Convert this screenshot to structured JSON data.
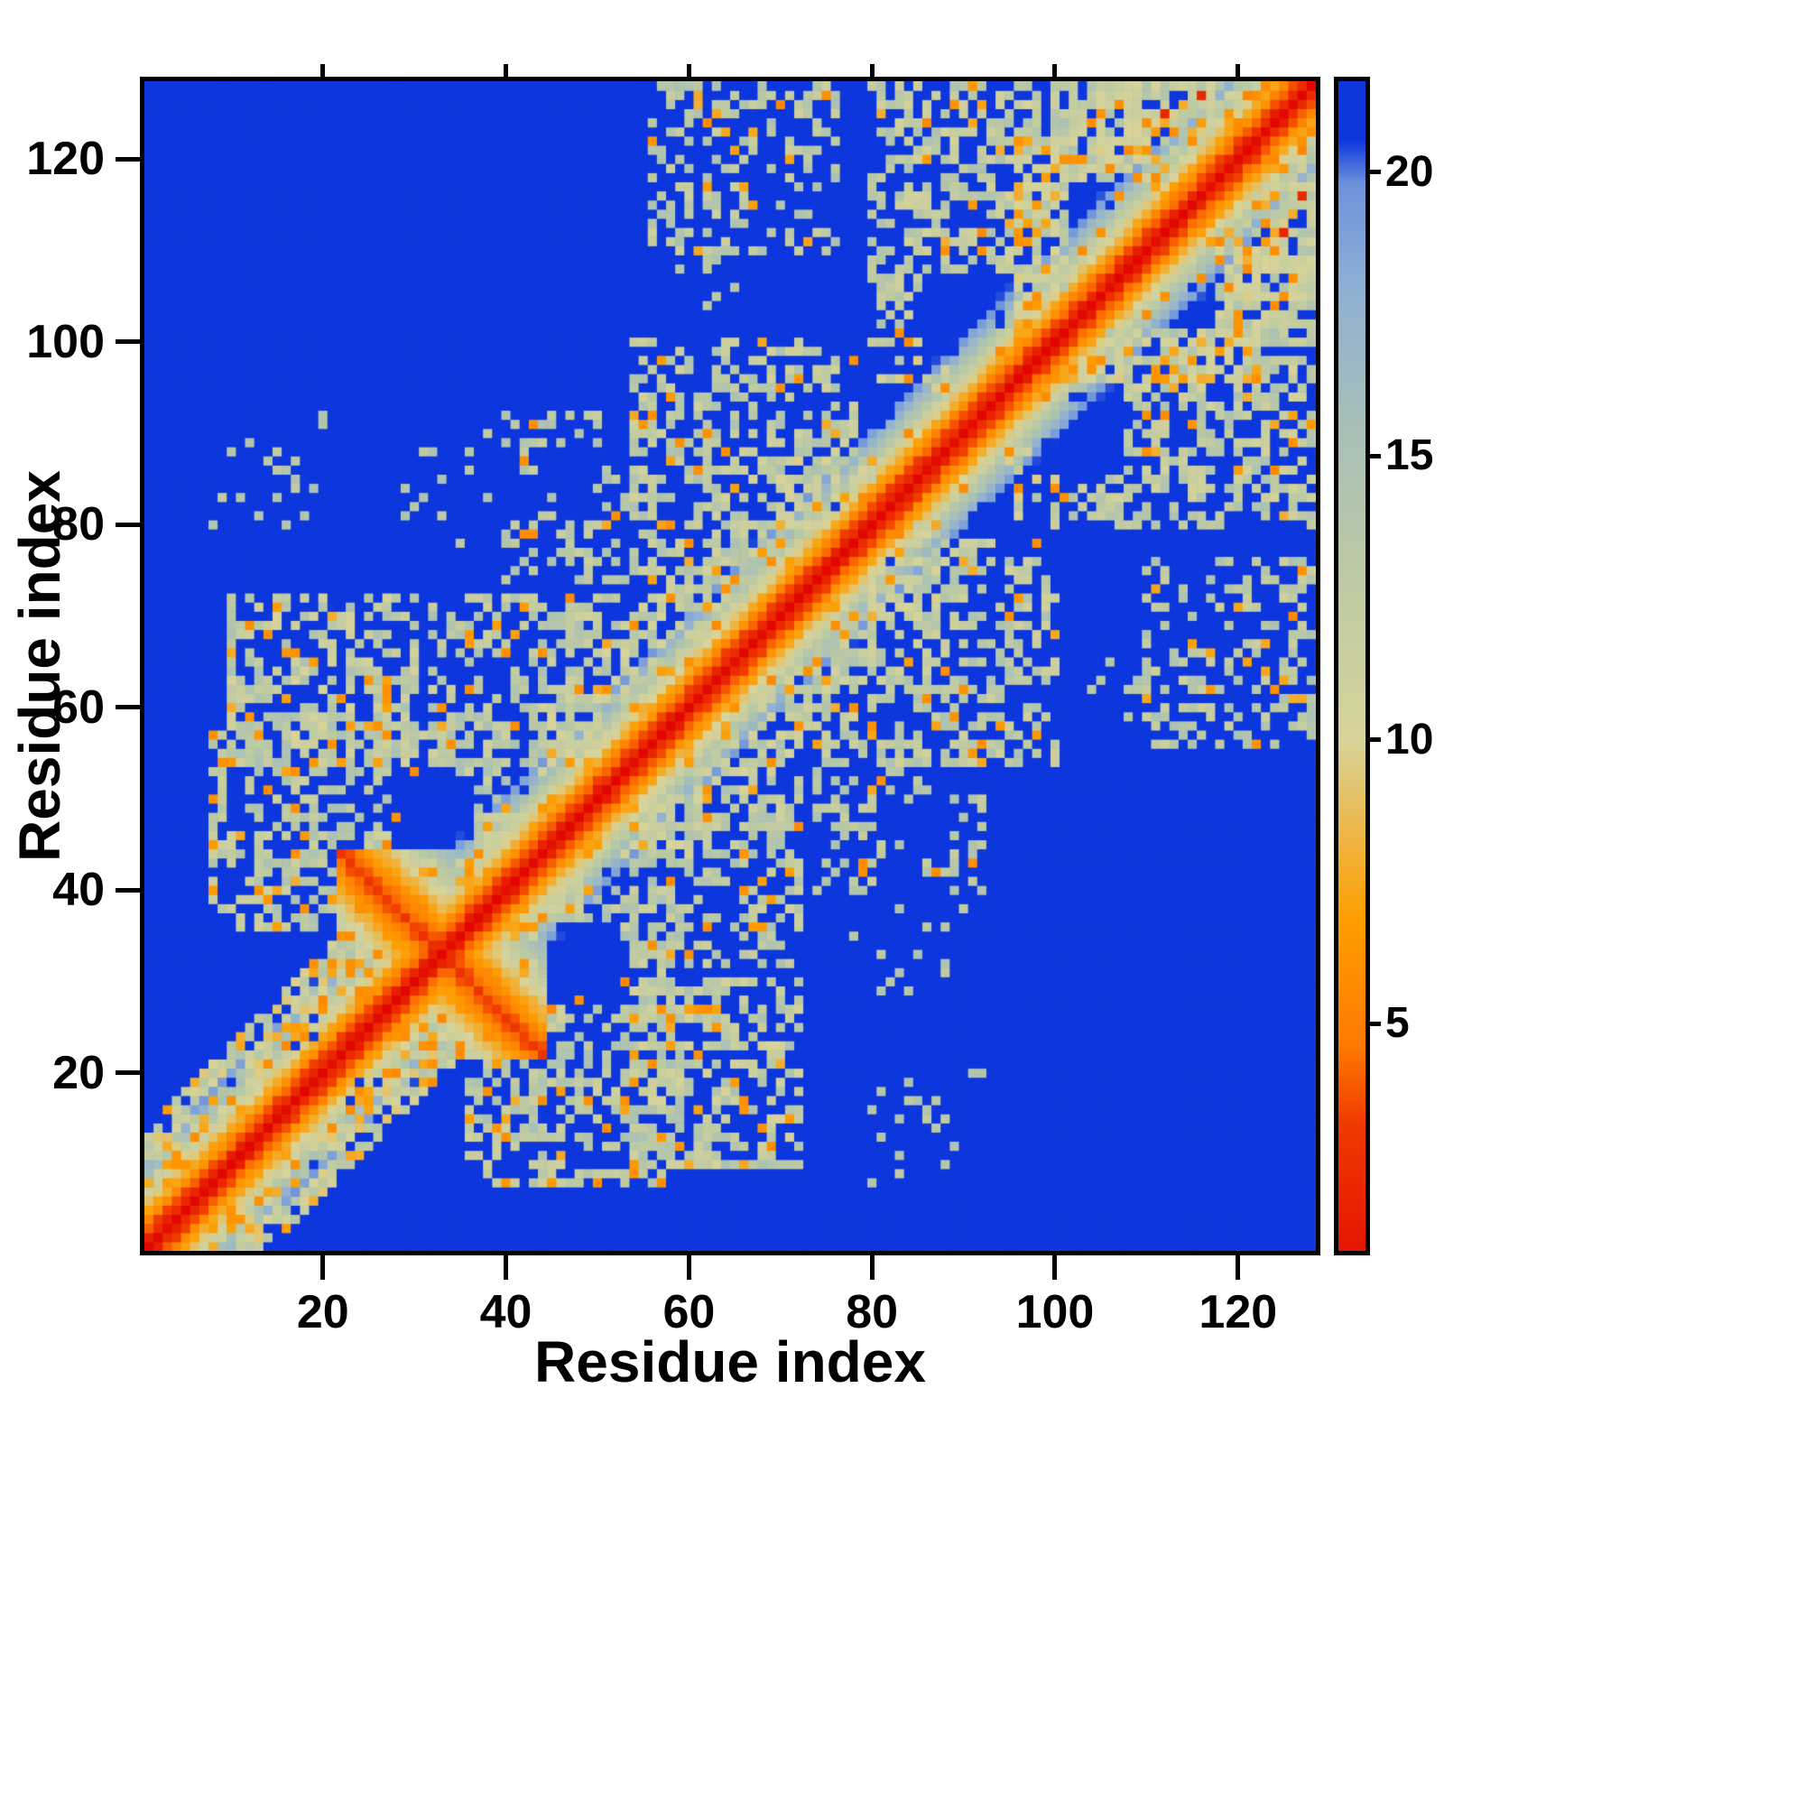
{
  "chart_data": {
    "type": "heatmap",
    "title": "",
    "xlabel": "Residue index",
    "ylabel": "Residue index",
    "n_residues": 128,
    "axis_range": [
      1,
      128
    ],
    "xticks": [
      20,
      40,
      60,
      80,
      100,
      120
    ],
    "yticks": [
      20,
      40,
      60,
      80,
      100,
      120
    ],
    "grid": false,
    "legend_position": "none",
    "colorbar": {
      "ticks": [
        5,
        10,
        15,
        20
      ],
      "vmin": 1,
      "vmax": 21.6,
      "orientation": "vertical-right"
    },
    "value_meaning": "pairwise residue distance, red = close (small), blue = far (capped)",
    "background_value": 22,
    "colormap": [
      {
        "v": 0.0,
        "c": "#e10600"
      },
      {
        "v": 3.2,
        "c": "#f03a00"
      },
      {
        "v": 4.6,
        "c": "#ff7a00"
      },
      {
        "v": 6.8,
        "c": "#ff9e00"
      },
      {
        "v": 8.4,
        "c": "#edb84a"
      },
      {
        "v": 10.0,
        "c": "#d8d49a"
      },
      {
        "v": 13.0,
        "c": "#bccaa4"
      },
      {
        "v": 15.5,
        "c": "#a8c0b8"
      },
      {
        "v": 18.0,
        "c": "#8fb0d4"
      },
      {
        "v": 19.8,
        "c": "#6e93dc"
      },
      {
        "v": 20.6,
        "c": "#0d36dd"
      },
      {
        "v": 22.0,
        "c": "#0d36dd"
      }
    ],
    "model": {
      "symmetric": true,
      "backbone": {
        "slope": 1.9,
        "jitter": 1.2,
        "speckle": 0.06,
        "hole": 0.05
      },
      "hairpin_antidiagonal": {
        "center": 33,
        "lo": 22,
        "hi": 44,
        "base": 3.0,
        "slope": 1.1
      },
      "contact_clusters": [
        {
          "x0": 1,
          "x1": 30,
          "y0": 1,
          "y1": 42,
          "fill": 0.75,
          "base": 12.0,
          "jitter": 3.0,
          "orange": 0.1,
          "maxoff": 13
        },
        {
          "x0": 22,
          "x1": 46,
          "y0": 24,
          "y1": 48,
          "fill": 0.55,
          "base": 12.5,
          "jitter": 2.5,
          "orange": 0.1,
          "maxoff": 18
        },
        {
          "x0": 8,
          "x1": 40,
          "y0": 36,
          "y1": 58,
          "fill": 0.42,
          "base": 13.0,
          "jitter": 2.2,
          "orange": 0.09
        },
        {
          "x0": 10,
          "x1": 30,
          "y0": 54,
          "y1": 72,
          "fill": 0.55,
          "base": 12.5,
          "jitter": 2.5,
          "orange": 0.12
        },
        {
          "x0": 32,
          "x1": 54,
          "y0": 54,
          "y1": 72,
          "fill": 0.5,
          "base": 13.0,
          "jitter": 2.2,
          "orange": 0.08
        },
        {
          "x0": 44,
          "x1": 76,
          "y0": 50,
          "y1": 80,
          "fill": 0.5,
          "base": 12.5,
          "jitter": 2.5,
          "orange": 0.08,
          "maxoff": 16
        },
        {
          "x0": 54,
          "x1": 76,
          "y0": 74,
          "y1": 100,
          "fill": 0.45,
          "base": 12.8,
          "jitter": 2.2,
          "orange": 0.09
        },
        {
          "x0": 70,
          "x1": 100,
          "y0": 70,
          "y1": 104,
          "fill": 0.6,
          "base": 12.0,
          "jitter": 2.5,
          "orange": 0.1,
          "maxoff": 15
        },
        {
          "x0": 94,
          "x1": 128,
          "y0": 94,
          "y1": 128,
          "fill": 0.65,
          "base": 12.0,
          "jitter": 2.5,
          "orange": 0.12,
          "maxoff": 22
        },
        {
          "x0": 80,
          "x1": 96,
          "y0": 100,
          "y1": 128,
          "fill": 0.5,
          "base": 12.6,
          "jitter": 2.2,
          "orange": 0.1
        },
        {
          "x0": 58,
          "x1": 66,
          "y0": 104,
          "y1": 126,
          "fill": 0.15,
          "base": 13.5,
          "jitter": 1.5,
          "orange": 0.05
        },
        {
          "x0": 56,
          "x1": 76,
          "y0": 110,
          "y1": 128,
          "fill": 0.3,
          "base": 13.0,
          "jitter": 2.0,
          "orange": 0.12
        },
        {
          "x0": 40,
          "x1": 56,
          "y0": 74,
          "y1": 92,
          "fill": 0.25,
          "base": 13.2,
          "jitter": 1.8,
          "orange": 0.06
        },
        {
          "x0": 8,
          "x1": 20,
          "y0": 76,
          "y1": 92,
          "fill": 0.1,
          "base": 13.5,
          "jitter": 1.5,
          "orange": 0.05
        },
        {
          "x0": 28,
          "x1": 38,
          "y0": 78,
          "y1": 90,
          "fill": 0.12,
          "base": 13.4,
          "jitter": 1.5,
          "orange": 0.05
        },
        {
          "x0": 96,
          "x1": 112,
          "y0": 112,
          "y1": 128,
          "fill": 0.55,
          "base": 12.4,
          "jitter": 2.4,
          "orange": 0.12
        }
      ],
      "blue_holes": [
        {
          "x0": 86,
          "x1": 95,
          "y0": 98,
          "y1": 107
        },
        {
          "x0": 102,
          "x1": 110,
          "y0": 109,
          "y1": 117
        },
        {
          "x0": 79,
          "x1": 86,
          "y0": 88,
          "y1": 95
        },
        {
          "x0": 28,
          "x1": 36,
          "y0": 44,
          "y1": 52
        }
      ],
      "orange_points": [
        [
          6,
          13
        ],
        [
          10,
          17
        ],
        [
          14,
          21
        ],
        [
          18,
          24
        ],
        [
          20,
          27
        ],
        [
          23,
          31
        ],
        [
          14,
          68
        ],
        [
          17,
          66
        ],
        [
          22,
          61
        ],
        [
          26,
          58
        ],
        [
          33,
          60
        ],
        [
          13,
          40
        ],
        [
          17,
          44
        ],
        [
          28,
          48
        ],
        [
          36,
          62
        ],
        [
          18,
          38
        ],
        [
          60,
          78
        ],
        [
          58,
          80
        ],
        [
          62,
          90
        ],
        [
          64,
          88
        ],
        [
          56,
          92
        ],
        [
          84,
          96
        ],
        [
          88,
          110
        ],
        [
          84,
          100
        ],
        [
          101,
          120
        ],
        [
          113,
          123
        ],
        [
          92,
          110
        ],
        [
          42,
          87
        ],
        [
          75,
          127
        ],
        [
          107,
          116
        ],
        [
          96,
          122
        ],
        [
          48,
          62
        ],
        [
          40,
          66
        ],
        [
          8,
          57
        ],
        [
          70,
          95
        ],
        [
          78,
          98
        ]
      ],
      "red_points": [
        [
          112,
          125
        ],
        [
          116,
          127
        ]
      ]
    }
  }
}
